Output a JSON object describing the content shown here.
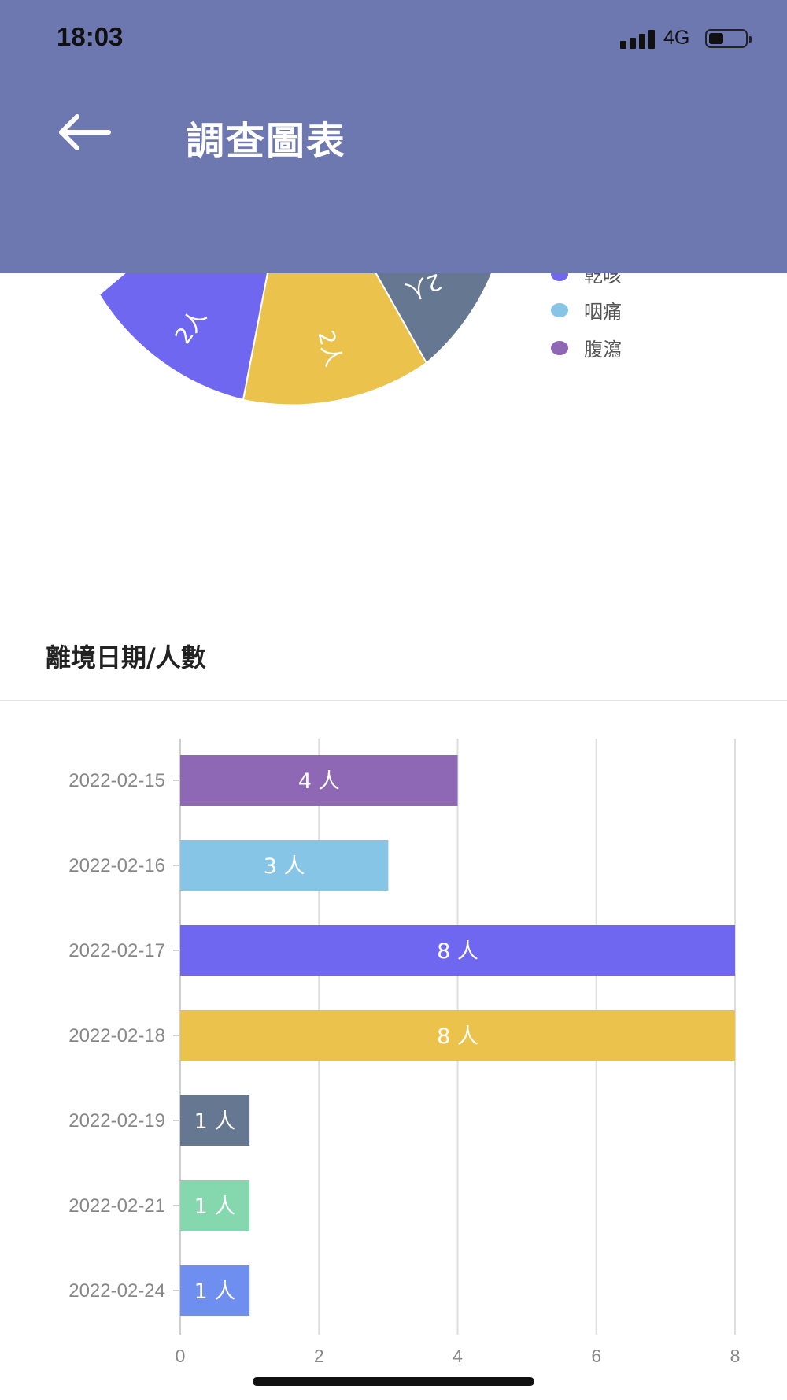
{
  "status": {
    "time": "18:03",
    "network": "4G"
  },
  "header": {
    "title": "調查圖表"
  },
  "pie": {
    "slices": [
      {
        "label": "2人",
        "color": "#6f67f0"
      },
      {
        "label": "2人",
        "color": "#ebc24b"
      },
      {
        "label": "2人",
        "color": "#667791"
      },
      {
        "label": "",
        "color": "#87c5e6"
      }
    ],
    "legend": [
      {
        "label": "乾咳",
        "color": "#6f67f0"
      },
      {
        "label": "咽痛",
        "color": "#87c5e6"
      },
      {
        "label": "腹瀉",
        "color": "#8f68b5"
      }
    ]
  },
  "section": {
    "title": "離境日期/人數"
  },
  "chart_data": {
    "type": "bar",
    "orientation": "horizontal",
    "categories": [
      "2022-02-15",
      "2022-02-16",
      "2022-02-17",
      "2022-02-18",
      "2022-02-19",
      "2022-02-21",
      "2022-02-24"
    ],
    "values": [
      4,
      3,
      8,
      8,
      1,
      1,
      1
    ],
    "data_labels": [
      "4 人",
      "3 人",
      "8 人",
      "8 人",
      "1 人",
      "1 人",
      "1 人"
    ],
    "colors": [
      "#8f68b5",
      "#87c5e6",
      "#6f67f0",
      "#ebc24b",
      "#667791",
      "#85d7ad",
      "#6e8ef0"
    ],
    "xlim": [
      0,
      8
    ],
    "xticks": [
      0,
      2,
      4,
      6,
      8
    ],
    "grid": true
  }
}
